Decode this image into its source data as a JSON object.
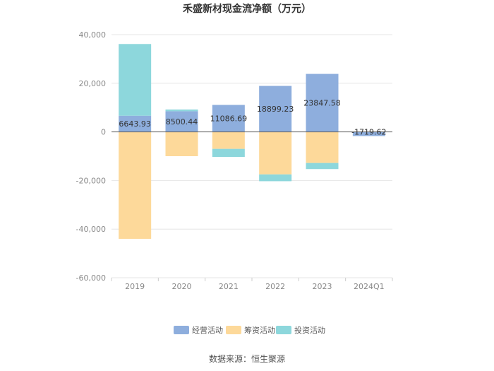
{
  "chart_data": {
    "type": "bar",
    "stacked": true,
    "title": "禾盛新材现金流净额（万元）",
    "categories": [
      "2019",
      "2020",
      "2021",
      "2022",
      "2023",
      "2024Q1"
    ],
    "series": [
      {
        "name": "经营活动",
        "color": "#8eaedd",
        "values": [
          6643.93,
          8500.44,
          11086.69,
          18899.23,
          23847.58,
          -1719.62
        ]
      },
      {
        "name": "筹资活动",
        "color": "#fdd99a",
        "values": [
          -44000,
          -10000,
          -7000,
          -17500,
          -12800,
          0
        ]
      },
      {
        "name": "投资活动",
        "color": "#8dd7dc",
        "values": [
          29500,
          700,
          -3300,
          -2800,
          -2500,
          0
        ]
      }
    ],
    "data_labels": [
      "6643.93",
      "8500.44",
      "11086.69",
      "18899.23",
      "23847.58",
      "-1719.62"
    ],
    "ylim": [
      -60000,
      40000
    ],
    "yticks": [
      40000,
      20000,
      0,
      -20000,
      -40000,
      -60000
    ],
    "ytick_labels": [
      "40,000",
      "20,000",
      "0",
      "-20,000",
      "-40,000",
      "-60,000"
    ],
    "grid": true,
    "legend_position": "bottom",
    "source": "数据来源：恒生聚源"
  }
}
